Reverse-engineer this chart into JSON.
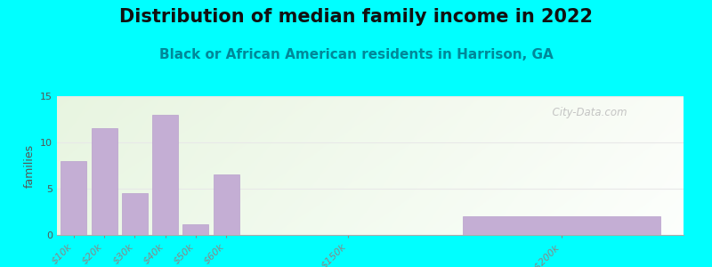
{
  "title": "Distribution of median family income in 2022",
  "subtitle": "Black or African American residents in Harrison, GA",
  "ylabel": "families",
  "background_color": "#00FFFF",
  "bar_color": "#c4aed4",
  "bar_edge_color": "#b8a0cc",
  "categories": [
    "$10k",
    "$20k",
    "$30k",
    "$40k",
    "$50k",
    "$60k",
    "$150k",
    ">$200k"
  ],
  "values": [
    8,
    11.5,
    4.5,
    13,
    1.2,
    6.5,
    0,
    2
  ],
  "x_positions": [
    0,
    1,
    2,
    3,
    4,
    5,
    9,
    16
  ],
  "bar_widths": [
    0.85,
    0.85,
    0.85,
    0.85,
    0.85,
    0.85,
    0.85,
    6.5
  ],
  "ylim": [
    0,
    15
  ],
  "xlim": [
    -0.55,
    20.0
  ],
  "yticks": [
    0,
    5,
    10,
    15
  ],
  "grid_color": "#e8e8e8",
  "title_fontsize": 15,
  "subtitle_fontsize": 11,
  "title_color": "#111111",
  "subtitle_color": "#008899",
  "ylabel_fontsize": 9,
  "tick_label_fontsize": 8,
  "watermark_text": "  City-Data.com",
  "plot_bg_left_color": "#e8f5e0",
  "plot_bg_right_color": "#f8fbf5"
}
